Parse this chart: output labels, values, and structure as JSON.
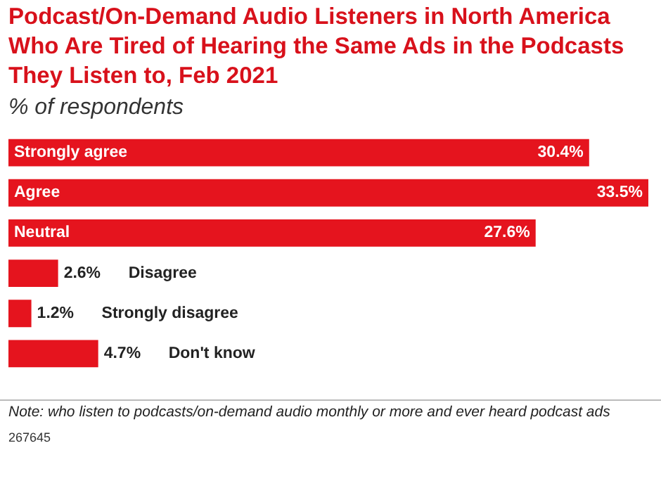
{
  "chart_data": {
    "type": "bar",
    "orientation": "horizontal",
    "title": "Podcast/On-Demand Audio Listeners in North America Who Are Tired of Hearing the Same Ads in the Podcasts They Listen to, Feb 2021",
    "subtitle": "% of respondents",
    "categories": [
      "Strongly agree",
      "Agree",
      "Neutral",
      "Disagree",
      "Strongly disagree",
      "Don't know"
    ],
    "values": [
      30.4,
      33.5,
      27.6,
      2.6,
      1.2,
      4.7
    ],
    "value_labels": [
      "30.4%",
      "33.5%",
      "27.6%",
      "2.6%",
      "1.2%",
      "4.7%"
    ],
    "color": "#e5141e",
    "annotations": [
      "Note: who listen to podcasts/on-demand audio monthly or more and ever heard podcast ads",
      "267645"
    ]
  }
}
